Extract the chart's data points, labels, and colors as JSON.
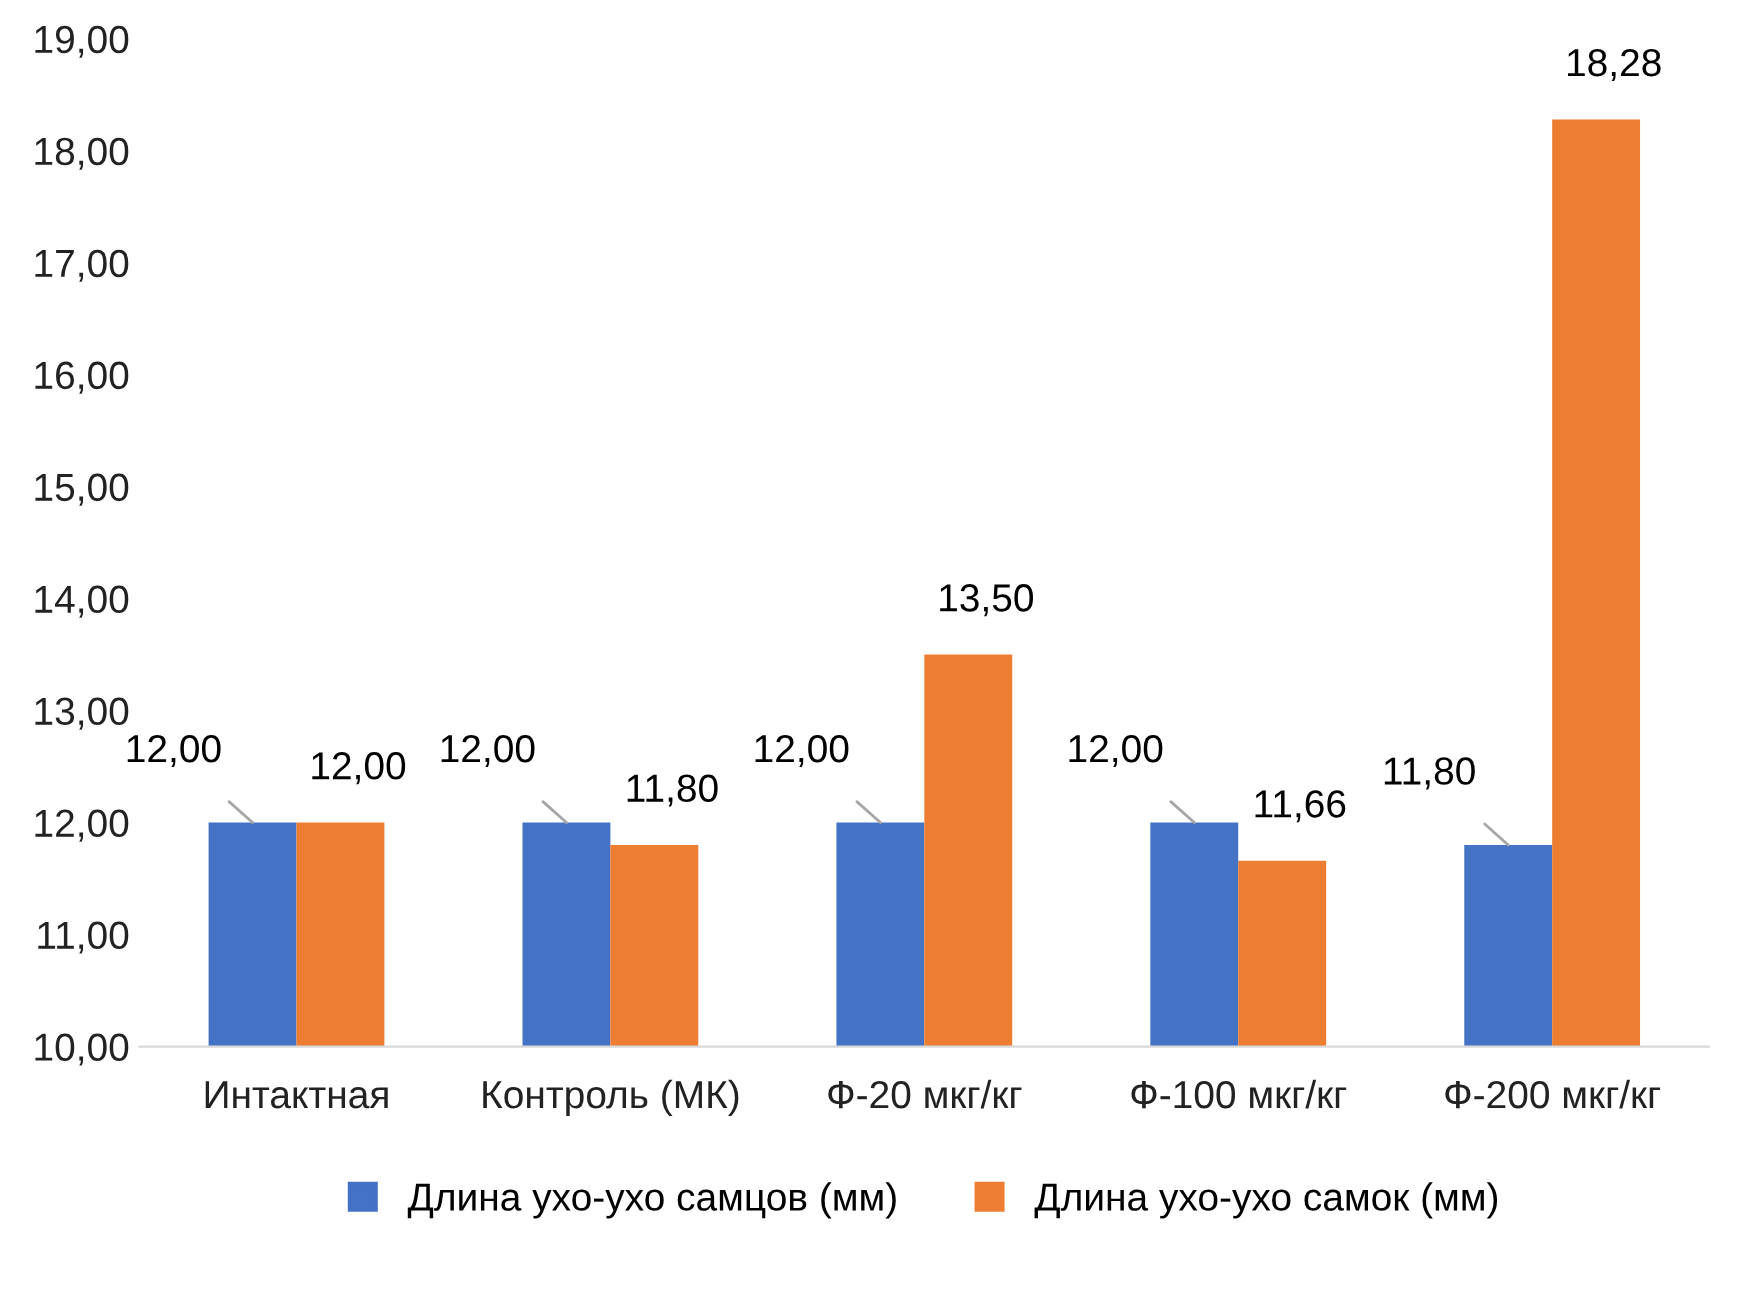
{
  "chart_data": {
    "type": "bar",
    "categories": [
      "Интактная",
      "Контроль (МК)",
      "Ф-20 мкг/кг",
      "Ф-100 мкг/кг",
      "Ф-200 мкг/кг"
    ],
    "series": [
      {
        "name": "Длина ухо-ухо самцов (мм)",
        "color": "#4472c4",
        "values": [
          12.0,
          12.0,
          12.0,
          12.0,
          11.8
        ],
        "value_labels": [
          "12,00",
          "12,00",
          "12,00",
          "12,00",
          "11,80"
        ]
      },
      {
        "name": "Длина ухо-ухо самок (мм)",
        "color": "#ed7d31",
        "values": [
          12.0,
          11.8,
          13.5,
          11.66,
          18.28
        ],
        "value_labels": [
          "12,00",
          "11,80",
          "13,50",
          "11,66",
          "18,28"
        ]
      }
    ],
    "ylim": [
      10,
      19
    ],
    "yticks": [
      {
        "value": 10,
        "label": "10,00"
      },
      {
        "value": 11,
        "label": "11,00"
      },
      {
        "value": 12,
        "label": "12,00"
      },
      {
        "value": 13,
        "label": "13,00"
      },
      {
        "value": 14,
        "label": "14,00"
      },
      {
        "value": 15,
        "label": "15,00"
      },
      {
        "value": 16,
        "label": "16,00"
      },
      {
        "value": 17,
        "label": "17,00"
      },
      {
        "value": 18,
        "label": "18,00"
      },
      {
        "value": 19,
        "label": "19,00"
      }
    ],
    "grid": false,
    "legend": "bottom"
  }
}
